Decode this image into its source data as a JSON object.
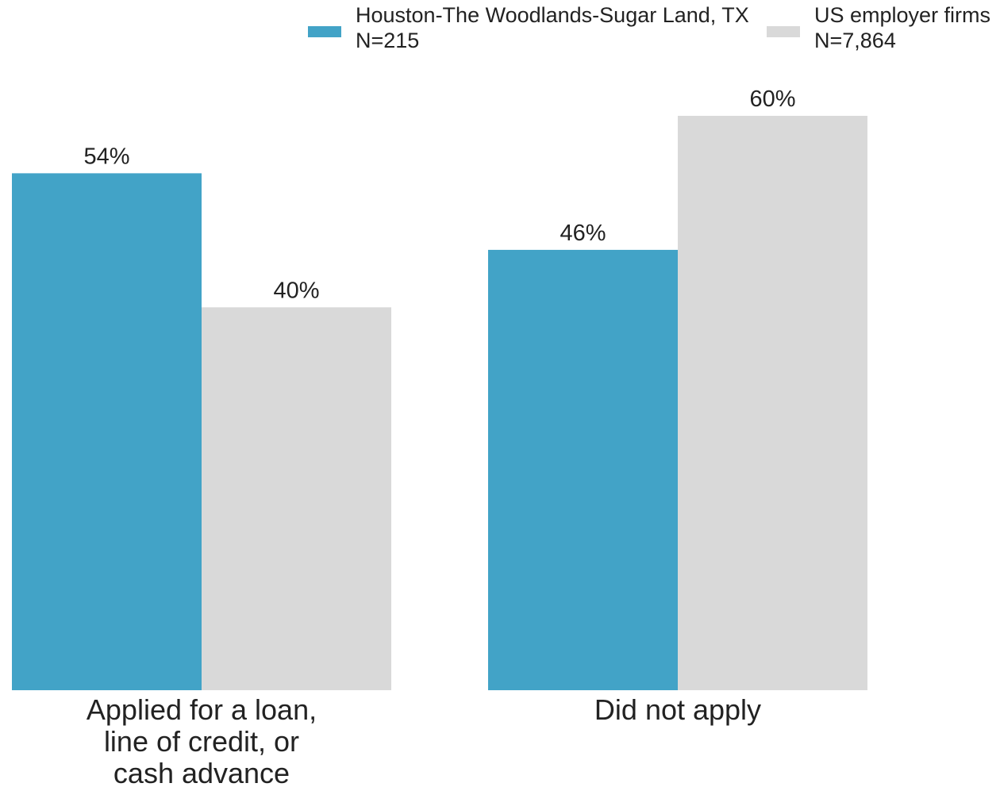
{
  "chart_data": {
    "type": "bar",
    "categories": [
      [
        "Applied for a loan,",
        "line of credit, or",
        "cash advance"
      ],
      [
        "Did not apply"
      ]
    ],
    "series": [
      {
        "name": "Houston-The Woodlands-Sugar Land, TX",
        "sample": "N=215",
        "color": "#42a3c7",
        "values": [
          54,
          46
        ],
        "labels": [
          "54%",
          "46%"
        ]
      },
      {
        "name": "US employer firms",
        "sample": "N=7,864",
        "color": "#d9d9d9",
        "values": [
          40,
          60
        ],
        "labels": [
          "40%",
          "60%"
        ]
      }
    ],
    "ylim": [
      0,
      60
    ],
    "grid": false,
    "legend_position": "top-right"
  }
}
